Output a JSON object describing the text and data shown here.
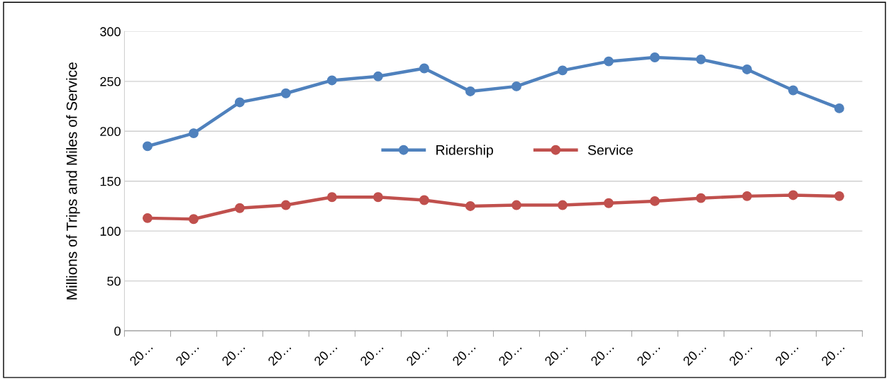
{
  "chart_data": {
    "type": "line",
    "ylabel": "Millions of Trips and Miles of Service",
    "categories": [
      "20…",
      "20…",
      "20…",
      "20…",
      "20…",
      "20…",
      "20…",
      "20…",
      "20…",
      "20…",
      "20…",
      "20…",
      "20…",
      "20…",
      "20…",
      "20…"
    ],
    "series": [
      {
        "name": "Ridership",
        "color": "#4f81bd",
        "values": [
          185,
          198,
          229,
          238,
          251,
          255,
          263,
          240,
          245,
          261,
          270,
          274,
          272,
          262,
          241,
          223
        ]
      },
      {
        "name": "Service",
        "color": "#c0504d",
        "values": [
          113,
          112,
          123,
          126,
          134,
          134,
          131,
          125,
          126,
          126,
          128,
          130,
          133,
          135,
          136,
          135
        ]
      }
    ],
    "ylim": [
      0,
      300
    ],
    "yticks": [
      0,
      50,
      100,
      150,
      200,
      250,
      300
    ],
    "grid": "y",
    "legend": "center",
    "marker": "circle",
    "line_style": "solid"
  }
}
